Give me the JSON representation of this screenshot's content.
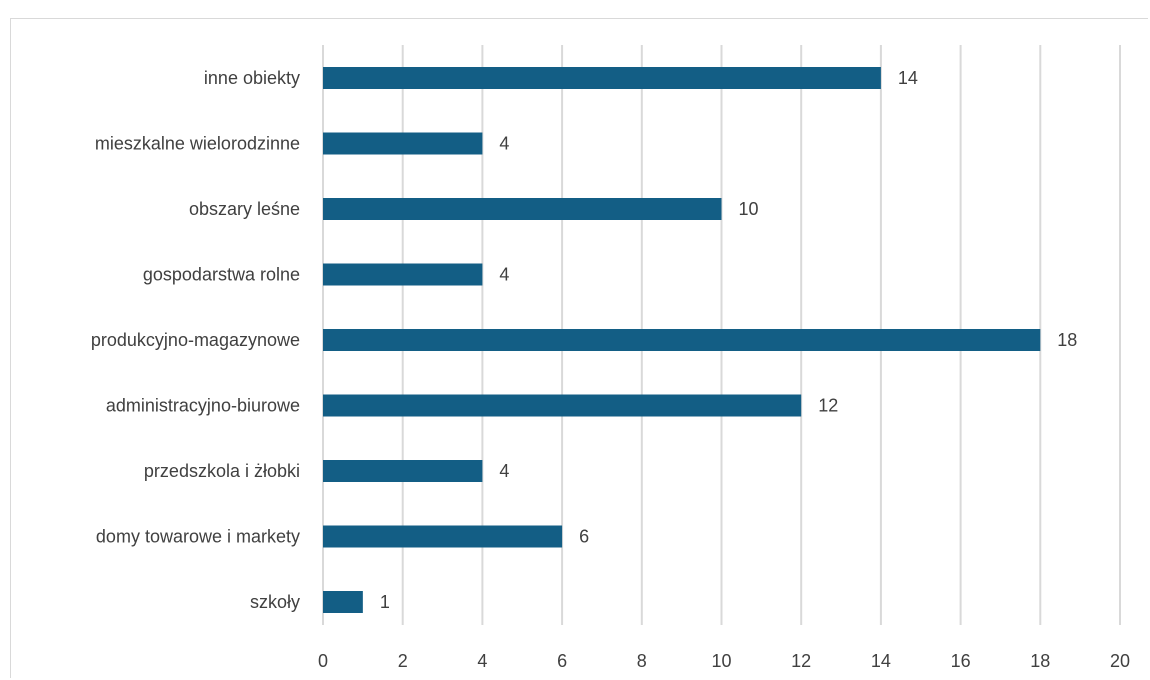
{
  "chart_data": {
    "type": "bar",
    "orientation": "horizontal",
    "categories": [
      "inne obiekty",
      "mieszkalne wielorodzinne",
      "obszary leśne",
      "gospodarstwa rolne",
      "produkcyjno-magazynowe",
      "administracyjno-biurowe",
      "przedszkola i żłobki",
      "domy towarowe i markety",
      "szkoły"
    ],
    "values": [
      14,
      4,
      10,
      4,
      18,
      12,
      4,
      6,
      1
    ],
    "xlim": [
      0,
      20
    ],
    "x_ticks": [
      0,
      2,
      4,
      6,
      8,
      10,
      12,
      14,
      16,
      18,
      20
    ],
    "grid": "vertical",
    "data_labels": true,
    "bar_color": "#135E85",
    "grid_color": "#D9D9D9",
    "text_color": "#404040"
  }
}
